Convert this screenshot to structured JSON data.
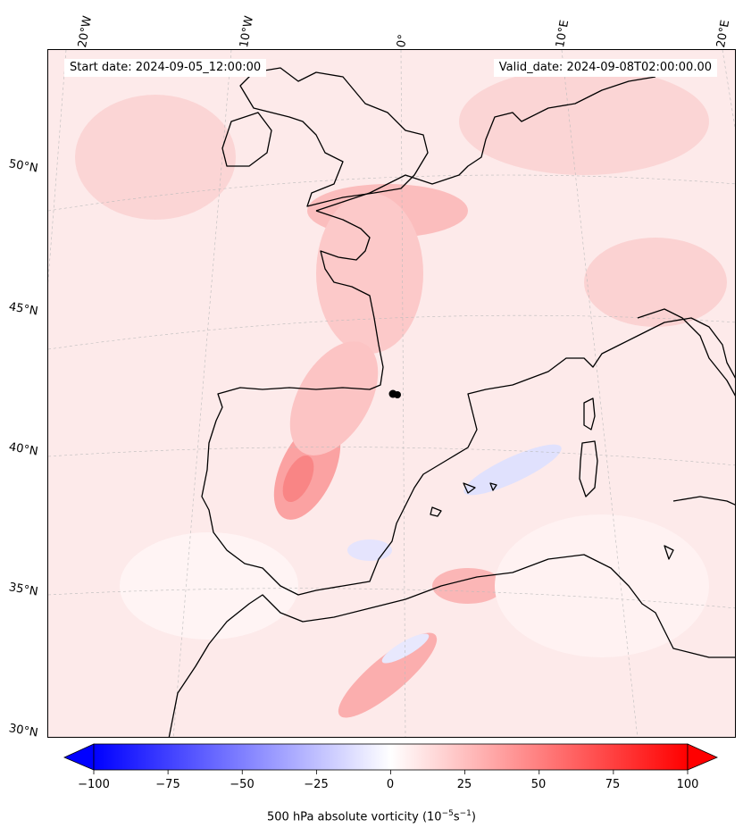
{
  "header": {
    "start_date": "Start date: 2024-09-05_12:00:00",
    "valid_date": "Valid_date: 2024-09-08T02:00:00.00"
  },
  "axes": {
    "lon_labels": [
      "20°W",
      "10°W",
      "0°",
      "10°E",
      "20°E"
    ],
    "lat_labels": [
      "50°N",
      "45°N",
      "40°N",
      "35°N",
      "30°N"
    ]
  },
  "colorbar": {
    "label": "500 hPa absolute vorticity (10",
    "label_exp1": "−5",
    "label_mid": "s",
    "label_exp2": "−1",
    "label_end": ")",
    "ticks": [
      "−100",
      "−75",
      "−50",
      "−25",
      "0",
      "25",
      "50",
      "75",
      "100"
    ],
    "min": -100,
    "max": 100,
    "negative_color": "#0000ff",
    "positive_color": "#ff0000",
    "center_color": "#ffffff"
  },
  "map": {
    "projection": "stereographic (Europe)",
    "field": "500 hPa absolute vorticity",
    "coastline_color": "#000000",
    "gridline_color": "#bbbbbb"
  }
}
